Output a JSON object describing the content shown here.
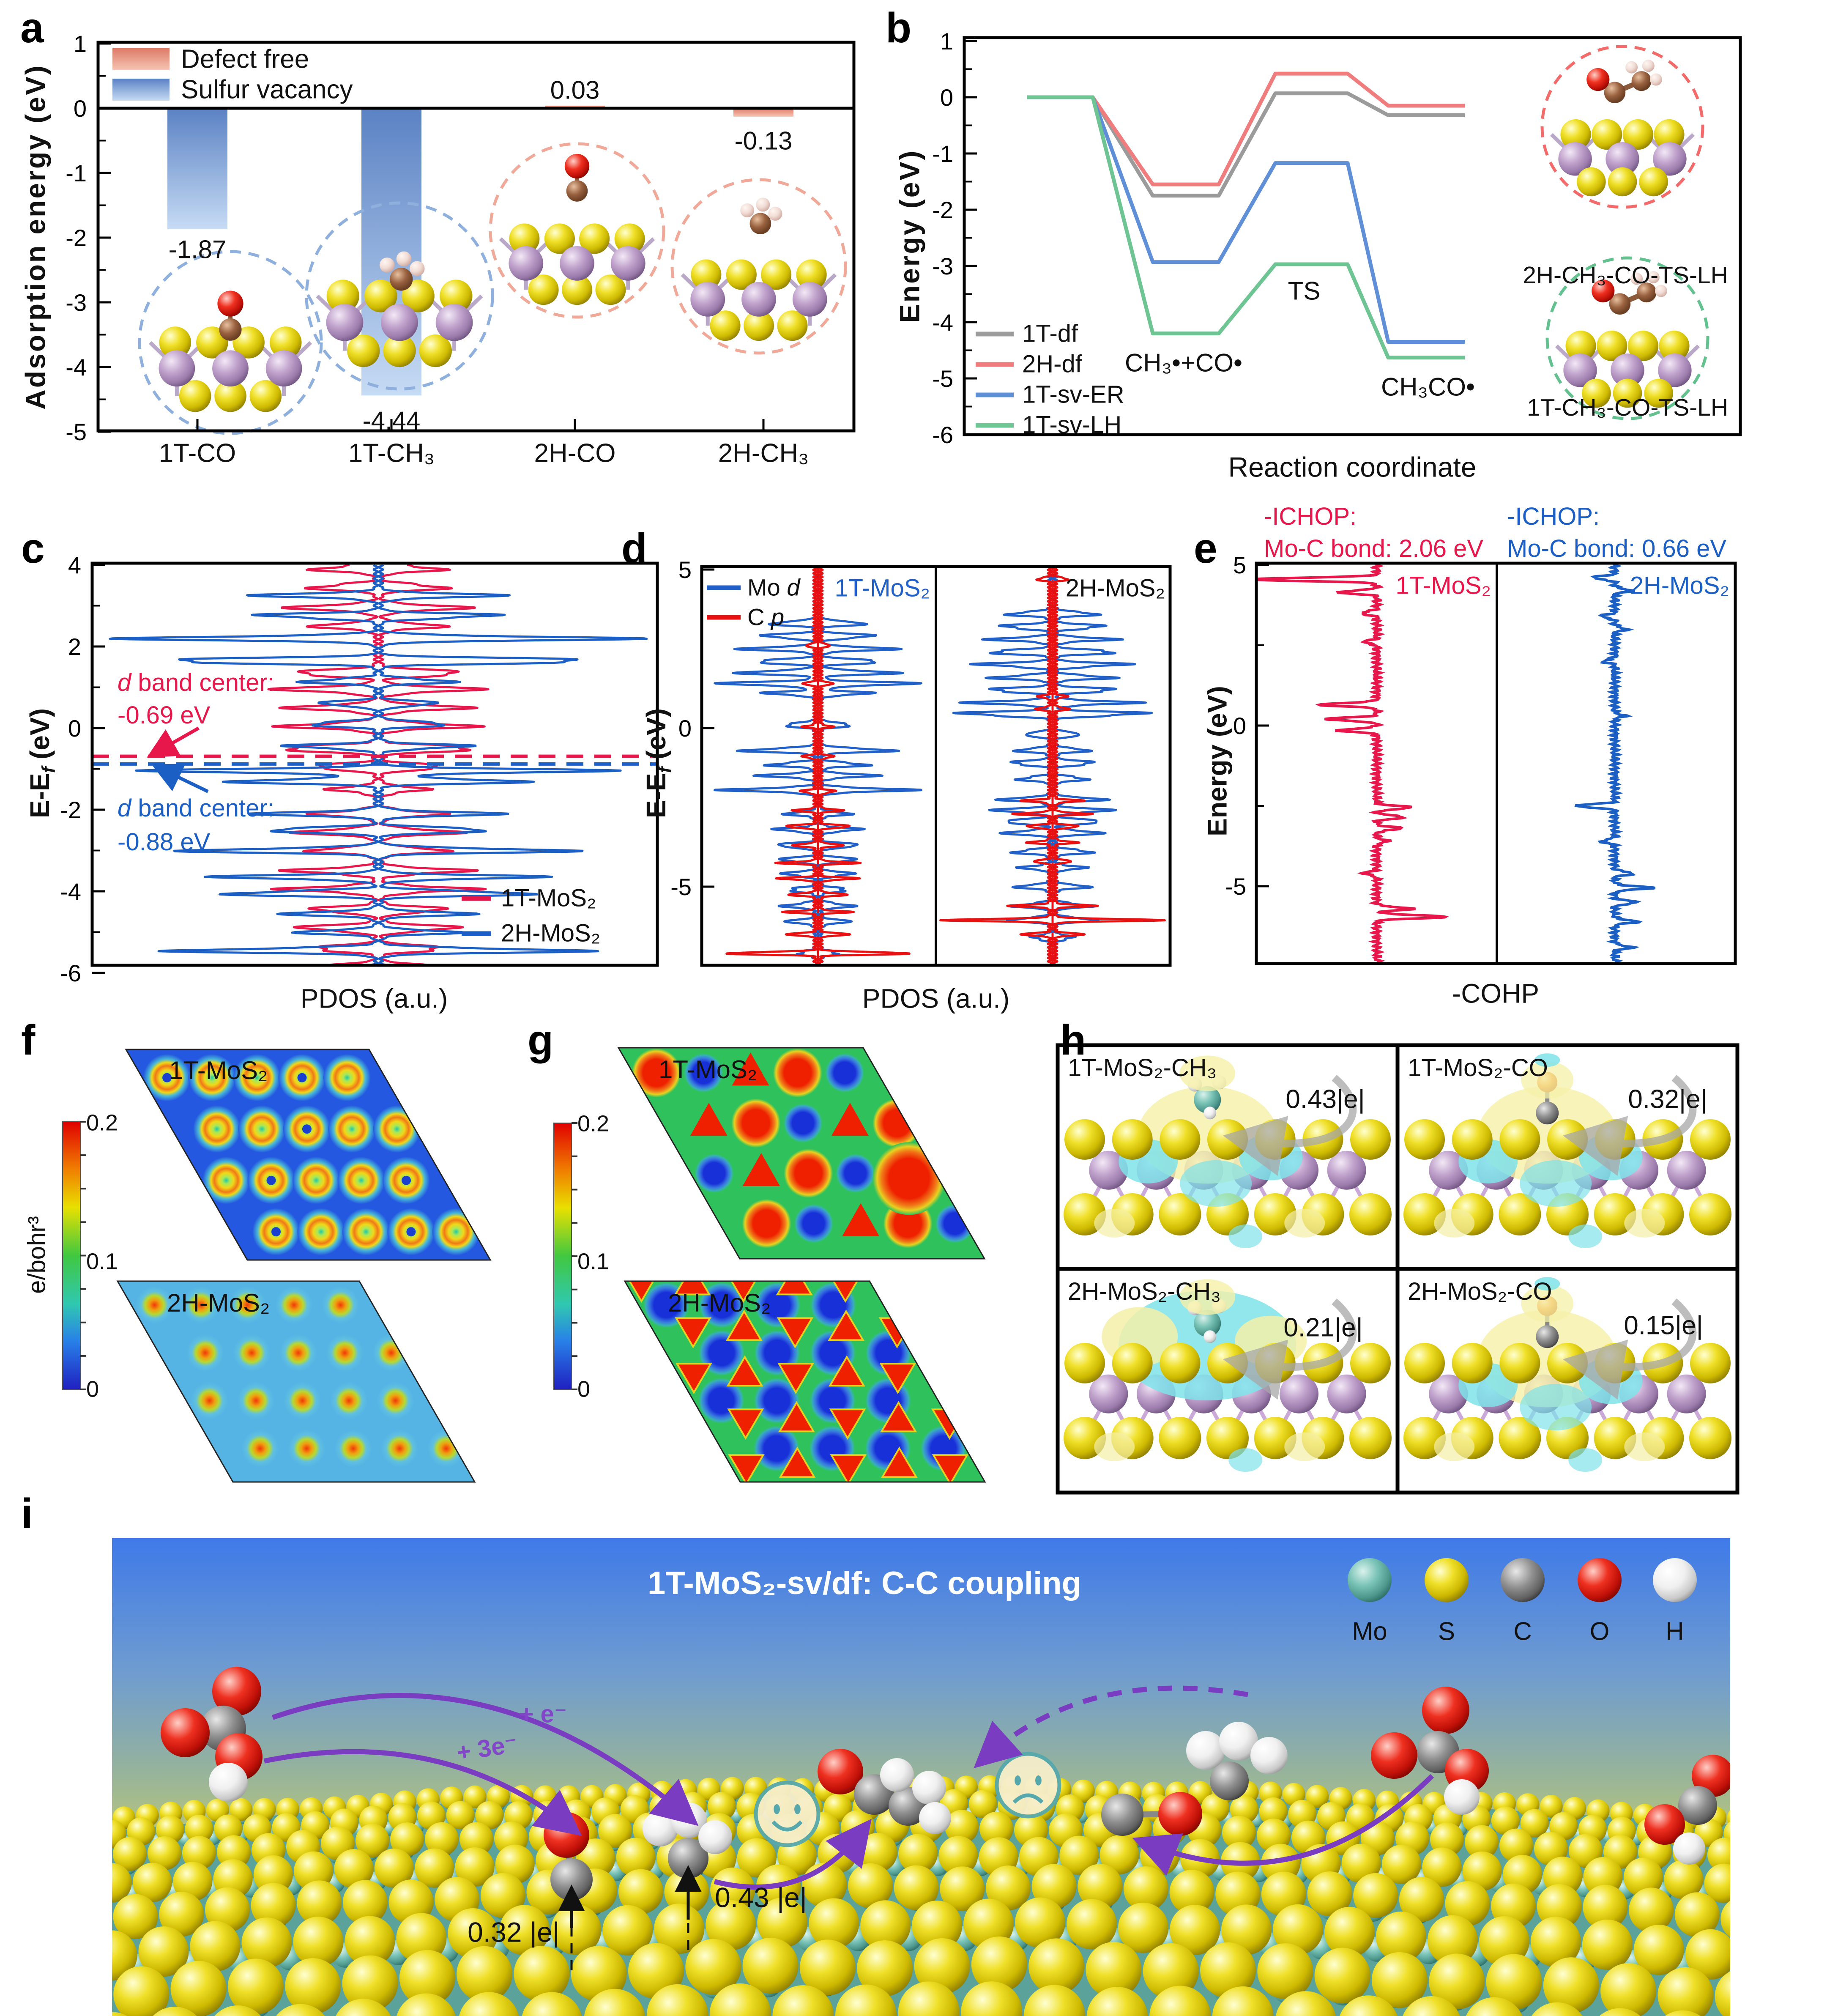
{
  "chart_data": [
    {
      "id": "a",
      "type": "bar",
      "label": "a",
      "ylabel": "Adsorption energy (eV)",
      "legend": [
        {
          "label": "Defect free",
          "color": "#df8570"
        },
        {
          "label": "Sulfur vacancy",
          "color": "#7fa8dc"
        }
      ],
      "categories": [
        "1T-CO",
        "1T-CH₃",
        "2H-CO",
        "2H-CH₃"
      ],
      "values": [
        -1.87,
        -4.44,
        0.03,
        -0.13
      ],
      "value_labels": [
        "-1.87",
        "-4.44",
        "0.03",
        "-0.13"
      ],
      "bar_series": [
        "Sulfur vacancy",
        "Sulfur vacancy",
        "Defect free",
        "Defect free"
      ],
      "ylim": [
        -5,
        1
      ],
      "yticks": [
        "1",
        "0",
        "-1",
        "-2",
        "-3",
        "-4",
        "-5"
      ]
    },
    {
      "id": "b",
      "type": "line",
      "label": "b",
      "ylabel": "Energy (eV)",
      "xlabel": "Reaction coordinate",
      "ylim": [
        -6,
        1
      ],
      "yticks": [
        "1",
        "0",
        "-1",
        "-2",
        "-3",
        "-4",
        "-5",
        "-6"
      ],
      "series": [
        {
          "name": "1T-df",
          "color": "#9b9b9b",
          "values": [
            0,
            -1.75,
            0.07,
            -0.32
          ]
        },
        {
          "name": "2H-df",
          "color": "#ef7d7d",
          "values": [
            0,
            -1.55,
            0.42,
            -0.15
          ]
        },
        {
          "name": "1T-sv-ER",
          "color": "#5f8fd6",
          "values": [
            0,
            -2.93,
            -1.17,
            -4.35
          ]
        },
        {
          "name": "1T-sv-LH",
          "color": "#6ec493",
          "values": [
            0,
            -4.2,
            -2.97,
            -4.63
          ]
        }
      ],
      "state_labels": [
        "CH₃•+CO•",
        "TS",
        "CH₃CO•"
      ],
      "insets": [
        {
          "label": "2H-CH₃-CO-TS-LH",
          "ring_color": "#f26a6a"
        },
        {
          "label": "1T-CH₃-CO-TS-LH",
          "ring_color": "#62c18e"
        }
      ]
    },
    {
      "id": "c",
      "type": "line",
      "subtype": "pdos-mirrored",
      "label": "c",
      "xlabel": "PDOS (a.u.)",
      "ylabel_pre": "E-E",
      "ylabel_sub": "f",
      "ylabel_post": " (eV)",
      "ylim": [
        -6,
        4
      ],
      "yticks": [
        "4",
        "2",
        "0",
        "-2",
        "-4",
        "-6"
      ],
      "d_band_centers": [
        {
          "label_italic": "d",
          "label_rest": " band center:",
          "label_line2": "-0.69 eV",
          "value": -0.69,
          "color": "#e8174b"
        },
        {
          "label_italic": "d",
          "label_rest": " band center:",
          "label_line2": "-0.88 eV",
          "value": -0.88,
          "color": "#1b5fc4"
        }
      ],
      "series": [
        {
          "name": "1T-MoS₂",
          "color": "#e8174b",
          "amp": 250,
          "width": 0.1,
          "peaks": [
            [
              3.9,
              0.55
            ],
            [
              3.45,
              0.6
            ],
            [
              2.95,
              0.75
            ],
            [
              2.5,
              0.55
            ],
            [
              1.35,
              0.8
            ],
            [
              0.95,
              0.85
            ],
            [
              0.5,
              0.75
            ],
            [
              0.05,
              0.8
            ],
            [
              -0.5,
              0.95
            ],
            [
              -0.95,
              0.6
            ],
            [
              -1.5,
              0.4
            ],
            [
              -2.1,
              0.55
            ],
            [
              -2.55,
              0.7
            ],
            [
              -3.0,
              0.6
            ],
            [
              -3.5,
              0.75
            ],
            [
              -3.95,
              0.8
            ],
            [
              -4.45,
              0.6
            ],
            [
              -4.9,
              0.7
            ],
            [
              -5.4,
              0.6
            ],
            [
              -5.85,
              0.45
            ]
          ]
        },
        {
          "name": "2H-MoS₂",
          "color": "#1b5fc4",
          "amp": 560,
          "width": 0.08,
          "peaks": [
            [
              3.25,
              0.45
            ],
            [
              2.75,
              0.5
            ],
            [
              2.2,
              0.95
            ],
            [
              1.65,
              1.0
            ],
            [
              1.15,
              0.3
            ],
            [
              0.6,
              0.25
            ],
            [
              0.1,
              0.3
            ],
            [
              -0.45,
              0.35
            ],
            [
              -1.05,
              0.85
            ],
            [
              -1.3,
              0.6
            ],
            [
              -2.1,
              0.45
            ],
            [
              -2.5,
              0.5
            ],
            [
              -3.0,
              0.75
            ],
            [
              -3.65,
              0.6
            ],
            [
              -4.05,
              0.65
            ],
            [
              -4.55,
              0.35
            ],
            [
              -5.0,
              0.3
            ],
            [
              -5.45,
              0.8
            ],
            [
              -5.95,
              0.35
            ]
          ]
        }
      ]
    },
    {
      "id": "d",
      "type": "line",
      "subtype": "pdos-two-panel",
      "label": "d",
      "xlabel": "PDOS (a.u.)",
      "ylabel_pre": "E-E",
      "ylabel_sub": "f",
      "ylabel_post": " (eV)",
      "ylim": [
        -7.5,
        5.1
      ],
      "yticks": [
        "5",
        "0",
        "-5"
      ],
      "legend": [
        {
          "pre": "Mo ",
          "it": "d",
          "color": "#2060c8"
        },
        {
          "pre": "C ",
          "it": "p",
          "color": "#e81010"
        }
      ],
      "panels": [
        {
          "title": "1T-MoS₂",
          "title_color": "#2060c8",
          "mo_peaks": [
            [
              3.3,
              0.5
            ],
            [
              2.9,
              0.6
            ],
            [
              2.5,
              0.75
            ],
            [
              2.1,
              0.7
            ],
            [
              1.75,
              0.8
            ],
            [
              1.4,
              0.95
            ],
            [
              1.1,
              0.5
            ],
            [
              0.1,
              0.35
            ],
            [
              -0.7,
              0.75
            ],
            [
              -1.15,
              0.5
            ],
            [
              -1.5,
              0.55
            ],
            [
              -1.95,
              0.9
            ],
            [
              -2.7,
              0.3
            ],
            [
              -3.2,
              0.4
            ],
            [
              -3.7,
              0.45
            ],
            [
              -4.15,
              0.4
            ],
            [
              -4.6,
              0.35
            ],
            [
              -5.1,
              0.3
            ],
            [
              -5.6,
              0.35
            ],
            [
              -6.1,
              0.3
            ],
            [
              -7.1,
              0.2
            ]
          ],
          "cp_peaks": [
            [
              2.6,
              0.1
            ],
            [
              1.4,
              0.12
            ],
            [
              0.05,
              0.1
            ],
            [
              -0.9,
              0.12
            ],
            [
              -2.0,
              0.15
            ],
            [
              -2.6,
              0.2
            ],
            [
              -3.1,
              0.35
            ],
            [
              -3.7,
              0.25
            ],
            [
              -4.25,
              0.3
            ],
            [
              -4.75,
              0.35
            ],
            [
              -5.25,
              0.3
            ],
            [
              -5.8,
              0.25
            ],
            [
              -6.5,
              0.3
            ],
            [
              -7.1,
              1.0
            ]
          ]
        },
        {
          "title": "2H-MoS₂",
          "title_color": "#111111",
          "mo_peaks": [
            [
              3.6,
              0.45
            ],
            [
              3.2,
              0.55
            ],
            [
              2.8,
              0.6
            ],
            [
              2.4,
              0.7
            ],
            [
              2.0,
              0.75
            ],
            [
              1.6,
              0.6
            ],
            [
              1.2,
              0.7
            ],
            [
              0.8,
              0.8
            ],
            [
              0.45,
              1.0
            ],
            [
              -0.2,
              0.3
            ],
            [
              -0.7,
              0.35
            ],
            [
              -1.1,
              0.45
            ],
            [
              -1.6,
              0.35
            ],
            [
              -2.25,
              0.5
            ],
            [
              -2.6,
              0.6
            ],
            [
              -2.95,
              0.55
            ],
            [
              -3.3,
              0.5
            ],
            [
              -3.9,
              0.4
            ],
            [
              -4.4,
              0.3
            ],
            [
              -5.0,
              0.35
            ],
            [
              -5.6,
              0.4
            ],
            [
              -6.05,
              0.45
            ],
            [
              -6.6,
              0.2
            ]
          ],
          "cp_peaks": [
            [
              4.7,
              0.15
            ],
            [
              1.0,
              0.12
            ],
            [
              0.6,
              0.15
            ],
            [
              -2.3,
              0.25
            ],
            [
              -2.7,
              0.3
            ],
            [
              -3.1,
              0.28
            ],
            [
              -3.6,
              0.2
            ],
            [
              -4.2,
              0.18
            ],
            [
              -5.6,
              0.35
            ],
            [
              -6.05,
              1.0
            ],
            [
              -6.5,
              0.3
            ]
          ]
        }
      ]
    },
    {
      "id": "e",
      "type": "line",
      "subtype": "cohp",
      "label": "e",
      "xlabel": "-COHP",
      "ylabel": "Energy (eV)",
      "ylim": [
        -7.4,
        5.1
      ],
      "yticks": [
        "5",
        "0",
        "-5"
      ],
      "headers": [
        {
          "line1": "-ICHOP:",
          "line2": "Mo-C bond: 2.06 eV",
          "color": "#e8174b"
        },
        {
          "line1": "-ICHOP:",
          "line2": "Mo-C bond: 0.66 eV",
          "color": "#1b5fc4"
        }
      ],
      "panels": [
        {
          "title": "1T-MoS₂",
          "color": "#e8174b",
          "neg_amp": 300,
          "pos_amp": 165,
          "neg_peaks": [
            [
              4.55,
              1.0
            ],
            [
              4.15,
              0.3
            ],
            [
              3.5,
              0.12
            ],
            [
              2.6,
              0.1
            ],
            [
              0.65,
              0.45
            ],
            [
              0.2,
              0.4
            ],
            [
              -0.15,
              0.3
            ],
            [
              -4.6,
              0.1
            ]
          ],
          "pos_peaks": [
            [
              -2.55,
              0.5
            ],
            [
              -2.85,
              0.4
            ],
            [
              -3.2,
              0.35
            ],
            [
              -3.6,
              0.15
            ],
            [
              -5.7,
              0.5
            ],
            [
              -5.95,
              1.0
            ]
          ]
        },
        {
          "title": "2H-MoS₂",
          "color": "#1b5fc4",
          "neg_amp": 105,
          "pos_amp": 88,
          "neg_peaks": [
            [
              4.6,
              0.5
            ],
            [
              3.4,
              0.3
            ],
            [
              2.0,
              0.25
            ],
            [
              -2.5,
              0.9
            ],
            [
              -3.6,
              0.3
            ]
          ],
          "pos_peaks": [
            [
              4.2,
              0.45
            ],
            [
              3.0,
              0.3
            ],
            [
              0.3,
              0.25
            ],
            [
              -4.6,
              0.5
            ],
            [
              -5.05,
              1.0
            ],
            [
              -5.5,
              0.6
            ],
            [
              -6.1,
              0.6
            ],
            [
              -6.9,
              0.45
            ]
          ]
        }
      ]
    },
    {
      "id": "f",
      "type": "heatmap",
      "label": "f",
      "colorbar": {
        "label": "e/bohr³",
        "ticks": [
          "0.2",
          "0.1",
          "0"
        ]
      },
      "maps": [
        {
          "label": "1T-MoS₂",
          "style": "rings-on-blue"
        },
        {
          "label": "2H-MoS₂",
          "style": "dots-on-lightblue"
        }
      ]
    },
    {
      "id": "g",
      "type": "heatmap",
      "label": "g",
      "colorbar": {
        "ticks": [
          "0.2",
          "0.1",
          "0"
        ]
      },
      "maps": [
        {
          "label": "1T-MoS₂",
          "style": "red-blue-blobs-on-green"
        },
        {
          "label": "2H-MoS₂",
          "style": "circles-triangles-on-green"
        }
      ]
    }
  ],
  "panel_h": {
    "label": "h",
    "cells": [
      {
        "title": "1T-MoS₂-CH₃",
        "value": "0.43|e|",
        "adsorbate": "CH3",
        "phase": "1T"
      },
      {
        "title": "1T-MoS₂-CO",
        "value": "0.32|e|",
        "adsorbate": "CO",
        "phase": "1T"
      },
      {
        "title": "2H-MoS₂-CH₃",
        "value": "0.21|e|",
        "adsorbate": "CH3",
        "phase": "2H"
      },
      {
        "title": "2H-MoS₂-CO",
        "value": "0.15|e|",
        "adsorbate": "CO",
        "phase": "2H"
      }
    ]
  },
  "panel_i": {
    "label": "i",
    "title": "1T-MoS₂-sv/df: C-C coupling",
    "atom_legend": [
      {
        "symbol": "Mo",
        "color": "#63b0a4"
      },
      {
        "symbol": "S",
        "color": "#e6d420"
      },
      {
        "symbol": "C",
        "color": "#7d7d7d"
      },
      {
        "symbol": "O",
        "color": "#e01212"
      },
      {
        "symbol": "H",
        "color": "#f2f2f2"
      }
    ],
    "annotations": {
      "electron1": "+ e⁻",
      "electron3": "+ 3e⁻",
      "charge_co": "0.32 |e|",
      "charge_ch3": "0.43 |e|"
    }
  }
}
